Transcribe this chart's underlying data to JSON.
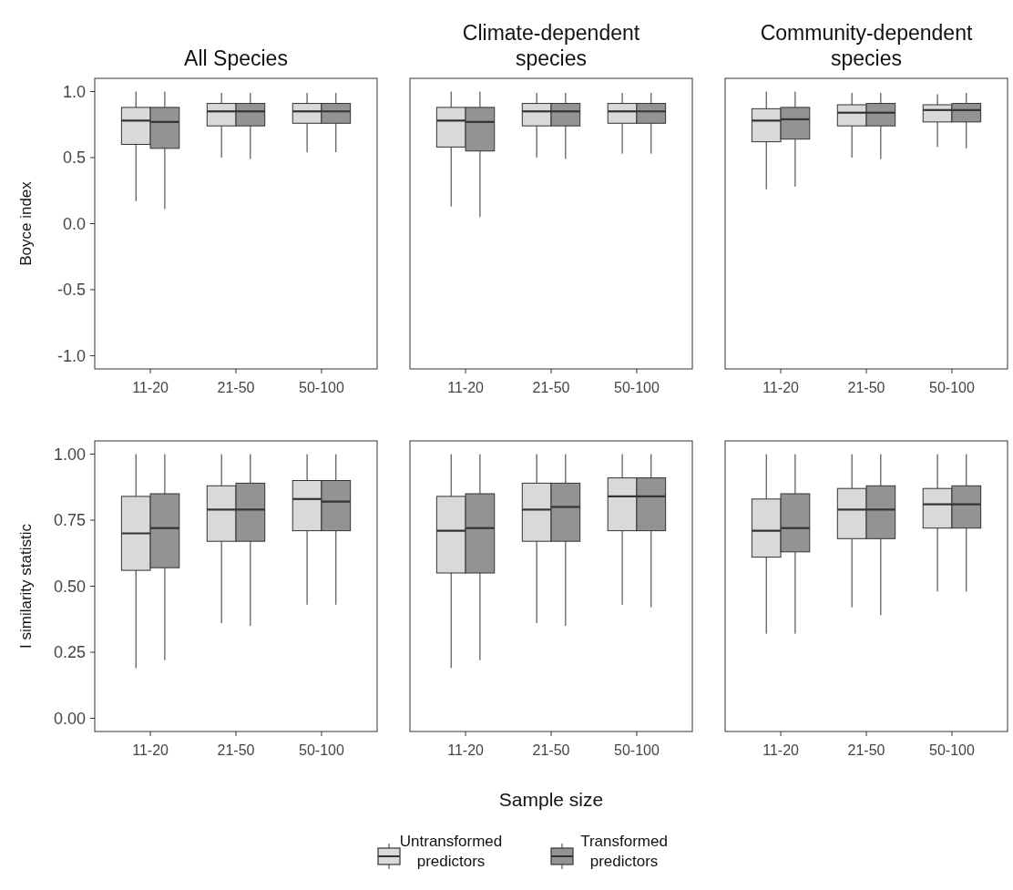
{
  "chart_data": [
    {
      "type": "box",
      "title": "All Species",
      "ylabel": "Boyce index",
      "categories": [
        "11-20",
        "21-50",
        "50-100"
      ],
      "ylim": [
        -1.1,
        1.1
      ],
      "yticks": [
        {
          "value": -1,
          "label": "-1.0"
        },
        {
          "value": -0.5,
          "label": "-0.5"
        },
        {
          "value": 0,
          "label": "0.0"
        },
        {
          "value": 0.5,
          "label": "0.5"
        },
        {
          "value": 1,
          "label": "1.0"
        }
      ],
      "series": [
        {
          "color": "#d9d9d9",
          "boxes": [
            {
              "low": 0.17,
              "q1": 0.6,
              "median": 0.78,
              "q3": 0.88,
              "high": 1.0
            },
            {
              "low": 0.5,
              "q1": 0.74,
              "median": 0.85,
              "q3": 0.91,
              "high": 0.99
            },
            {
              "low": 0.54,
              "q1": 0.76,
              "median": 0.85,
              "q3": 0.91,
              "high": 0.99
            }
          ]
        },
        {
          "color": "#939393",
          "boxes": [
            {
              "low": 0.11,
              "q1": 0.57,
              "median": 0.77,
              "q3": 0.88,
              "high": 1.0
            },
            {
              "low": 0.49,
              "q1": 0.74,
              "median": 0.85,
              "q3": 0.91,
              "high": 0.99
            },
            {
              "low": 0.54,
              "q1": 0.76,
              "median": 0.85,
              "q3": 0.91,
              "high": 0.99
            }
          ]
        }
      ]
    },
    {
      "type": "box",
      "title": "Climate-dependent species",
      "categories": [
        "11-20",
        "21-50",
        "50-100"
      ],
      "ylim": [
        -1.1,
        1.1
      ],
      "tick_labels": "x",
      "series": [
        {
          "color": "#d9d9d9",
          "boxes": [
            {
              "low": 0.13,
              "q1": 0.58,
              "median": 0.78,
              "q3": 0.88,
              "high": 1.0
            },
            {
              "low": 0.5,
              "q1": 0.74,
              "median": 0.85,
              "q3": 0.91,
              "high": 0.99
            },
            {
              "low": 0.53,
              "q1": 0.76,
              "median": 0.85,
              "q3": 0.91,
              "high": 0.99
            }
          ]
        },
        {
          "color": "#939393",
          "boxes": [
            {
              "low": 0.05,
              "q1": 0.55,
              "median": 0.77,
              "q3": 0.88,
              "high": 1.0
            },
            {
              "low": 0.49,
              "q1": 0.74,
              "median": 0.85,
              "q3": 0.91,
              "high": 0.99
            },
            {
              "low": 0.53,
              "q1": 0.76,
              "median": 0.85,
              "q3": 0.91,
              "high": 0.99
            }
          ]
        }
      ]
    },
    {
      "type": "box",
      "title": "Community-dependent species",
      "categories": [
        "11-20",
        "21-50",
        "50-100"
      ],
      "ylim": [
        -1.1,
        1.1
      ],
      "tick_labels": "x",
      "series": [
        {
          "color": "#d9d9d9",
          "boxes": [
            {
              "low": 0.26,
              "q1": 0.62,
              "median": 0.78,
              "q3": 0.87,
              "high": 1.0
            },
            {
              "low": 0.5,
              "q1": 0.74,
              "median": 0.84,
              "q3": 0.9,
              "high": 0.99
            },
            {
              "low": 0.58,
              "q1": 0.77,
              "median": 0.86,
              "q3": 0.9,
              "high": 0.98
            }
          ]
        },
        {
          "color": "#939393",
          "boxes": [
            {
              "low": 0.28,
              "q1": 0.64,
              "median": 0.79,
              "q3": 0.88,
              "high": 1.0
            },
            {
              "low": 0.49,
              "q1": 0.74,
              "median": 0.84,
              "q3": 0.91,
              "high": 0.99
            },
            {
              "low": 0.57,
              "q1": 0.77,
              "median": 0.86,
              "q3": 0.91,
              "high": 0.99
            }
          ]
        }
      ]
    },
    {
      "type": "box",
      "ylabel": "I similarity statistic",
      "categories": [
        "11-20",
        "21-50",
        "50-100"
      ],
      "ylim": [
        -0.05,
        1.05
      ],
      "yticks": [
        {
          "value": 0,
          "label": "0.00"
        },
        {
          "value": 0.25,
          "label": "0.25"
        },
        {
          "value": 0.5,
          "label": "0.50"
        },
        {
          "value": 0.75,
          "label": "0.75"
        },
        {
          "value": 1,
          "label": "1.00"
        }
      ],
      "series": [
        {
          "color": "#d9d9d9",
          "boxes": [
            {
              "low": 0.19,
              "q1": 0.56,
              "median": 0.7,
              "q3": 0.84,
              "high": 1.0
            },
            {
              "low": 0.36,
              "q1": 0.67,
              "median": 0.79,
              "q3": 0.88,
              "high": 1.0
            },
            {
              "low": 0.43,
              "q1": 0.71,
              "median": 0.83,
              "q3": 0.9,
              "high": 1.0
            }
          ]
        },
        {
          "color": "#939393",
          "boxes": [
            {
              "low": 0.22,
              "q1": 0.57,
              "median": 0.72,
              "q3": 0.85,
              "high": 1.0
            },
            {
              "low": 0.35,
              "q1": 0.67,
              "median": 0.79,
              "q3": 0.89,
              "high": 1.0
            },
            {
              "low": 0.43,
              "q1": 0.71,
              "median": 0.82,
              "q3": 0.9,
              "high": 1.0
            }
          ]
        }
      ]
    },
    {
      "type": "box",
      "xlabel": "Sample size",
      "legend": "bottom",
      "categories": [
        "11-20",
        "21-50",
        "50-100"
      ],
      "ylim": [
        -0.05,
        1.05
      ],
      "tick_labels": "x",
      "series": [
        {
          "name": "Untransformed predictors",
          "color": "#d9d9d9",
          "boxes": [
            {
              "low": 0.19,
              "q1": 0.55,
              "median": 0.71,
              "q3": 0.84,
              "high": 1.0
            },
            {
              "low": 0.36,
              "q1": 0.67,
              "median": 0.79,
              "q3": 0.89,
              "high": 1.0
            },
            {
              "low": 0.43,
              "q1": 0.71,
              "median": 0.84,
              "q3": 0.91,
              "high": 1.0
            }
          ]
        },
        {
          "name": "Transformed predictors",
          "color": "#939393",
          "boxes": [
            {
              "low": 0.22,
              "q1": 0.55,
              "median": 0.72,
              "q3": 0.85,
              "high": 1.0
            },
            {
              "low": 0.35,
              "q1": 0.67,
              "median": 0.8,
              "q3": 0.89,
              "high": 1.0
            },
            {
              "low": 0.42,
              "q1": 0.71,
              "median": 0.84,
              "q3": 0.91,
              "high": 1.0
            }
          ]
        }
      ]
    },
    {
      "type": "box",
      "categories": [
        "11-20",
        "21-50",
        "50-100"
      ],
      "ylim": [
        -0.05,
        1.05
      ],
      "tick_labels": "x",
      "series": [
        {
          "color": "#d9d9d9",
          "boxes": [
            {
              "low": 0.32,
              "q1": 0.61,
              "median": 0.71,
              "q3": 0.83,
              "high": 1.0
            },
            {
              "low": 0.42,
              "q1": 0.68,
              "median": 0.79,
              "q3": 0.87,
              "high": 1.0
            },
            {
              "low": 0.48,
              "q1": 0.72,
              "median": 0.81,
              "q3": 0.87,
              "high": 1.0
            }
          ]
        },
        {
          "color": "#939393",
          "boxes": [
            {
              "low": 0.32,
              "q1": 0.63,
              "median": 0.72,
              "q3": 0.85,
              "high": 1.0
            },
            {
              "low": 0.39,
              "q1": 0.68,
              "median": 0.79,
              "q3": 0.88,
              "high": 1.0
            },
            {
              "low": 0.48,
              "q1": 0.72,
              "median": 0.81,
              "q3": 0.88,
              "high": 1.0
            }
          ]
        }
      ]
    }
  ]
}
